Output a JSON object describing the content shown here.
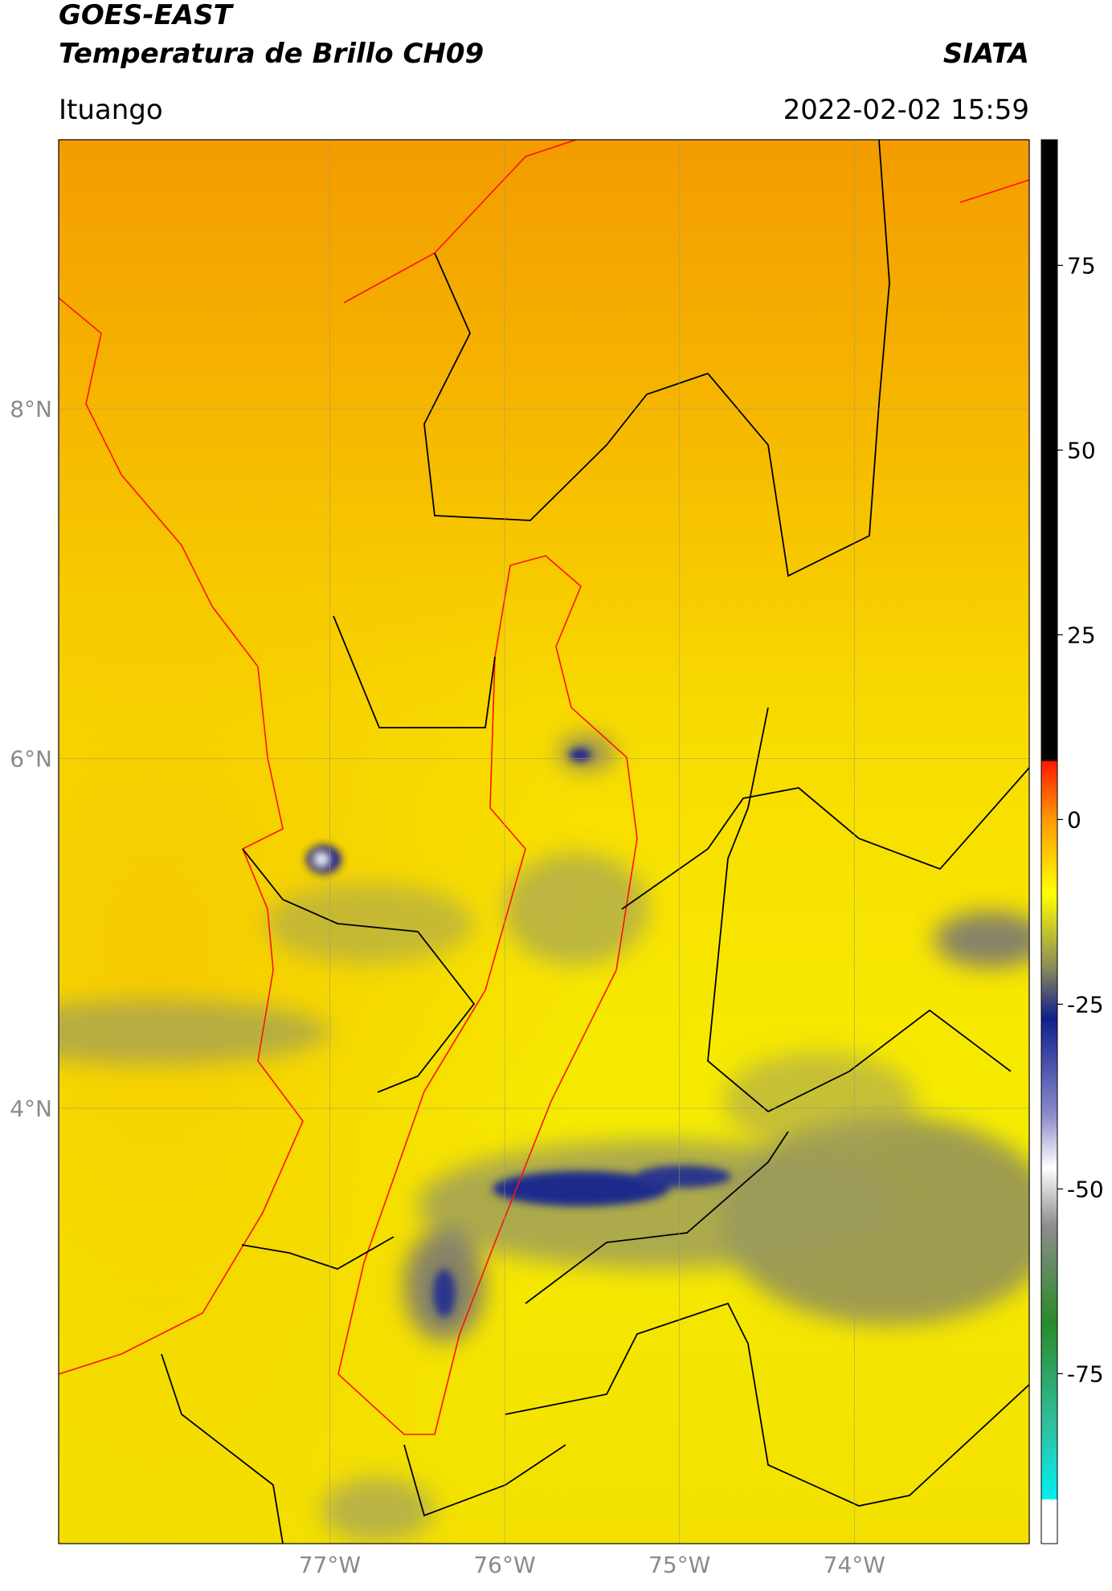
{
  "header": {
    "satellite": "GOES-EAST",
    "product": "Temperatura de Brillo CH09",
    "agency": "SIATA",
    "region": "Ituango",
    "datetime": "2022-02-02 15:59"
  },
  "chart_data": {
    "type": "map",
    "xlim": [
      -78.55,
      -73.0
    ],
    "ylim": [
      1.51,
      9.54
    ],
    "xticks": [
      {
        "value": -77,
        "label": "77°W"
      },
      {
        "value": -76,
        "label": "76°W"
      },
      {
        "value": -75,
        "label": "75°W"
      },
      {
        "value": -74,
        "label": "74°W"
      }
    ],
    "yticks": [
      {
        "value": 4,
        "label": "4°N"
      },
      {
        "value": 6,
        "label": "6°N"
      },
      {
        "value": 8,
        "label": "8°N"
      }
    ],
    "grid": true,
    "colorbar": {
      "lim": [
        -98,
        92
      ],
      "ticks": [
        75,
        50,
        25,
        0,
        -25,
        -50,
        -75
      ]
    }
  }
}
